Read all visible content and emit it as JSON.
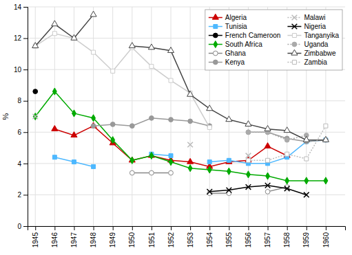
{
  "chart_data": {
    "type": "line",
    "y_label": "%",
    "x": [
      1945,
      1946,
      1947,
      1948,
      1949,
      1950,
      1951,
      1952,
      1953,
      1954,
      1955,
      1956,
      1957,
      1958,
      1959,
      1960
    ],
    "xlim": [
      1944.6,
      1961.0
    ],
    "xticks": [
      1945,
      1946,
      1947,
      1948,
      1949,
      1950,
      1951,
      1952,
      1953,
      1954,
      1955,
      1956,
      1957,
      1958,
      1959,
      1960
    ],
    "ylim": [
      0,
      14
    ],
    "yticks": [
      0,
      2,
      4,
      6,
      8,
      10,
      12,
      14
    ],
    "grid": true,
    "legend": "upper right",
    "series": [
      {
        "name": "Algeria",
        "color": "#cc0000",
        "marker": "triangle",
        "line_style": "solid",
        "values": [
          null,
          6.2,
          5.8,
          6.4,
          5.3,
          4.2,
          4.5,
          4.2,
          4.1,
          3.8,
          4.1,
          4.2,
          5.1,
          4.5,
          null,
          null
        ]
      },
      {
        "name": "Tunisia",
        "color": "#4db8ff",
        "marker": "square",
        "line_style": "solid",
        "values": [
          null,
          4.4,
          4.1,
          3.8,
          null,
          null,
          4.6,
          4.5,
          null,
          4.1,
          4.2,
          4.0,
          4.0,
          4.4,
          5.4,
          5.5
        ]
      },
      {
        "name": "French Cameroon",
        "color": "#000000",
        "marker": "circle",
        "line_style": "solid",
        "values": [
          8.6,
          null,
          null,
          null,
          null,
          null,
          null,
          null,
          null,
          null,
          null,
          null,
          null,
          null,
          null,
          null
        ]
      },
      {
        "name": "South Africa",
        "color": "#00aa00",
        "marker": "diamond",
        "line_style": "solid",
        "values": [
          7.0,
          8.6,
          7.2,
          6.9,
          5.5,
          4.2,
          4.5,
          4.1,
          3.7,
          3.6,
          3.5,
          3.3,
          3.2,
          2.9,
          2.9,
          2.9
        ]
      },
      {
        "name": "Ghana",
        "color": "#888888",
        "marker": "circle-open",
        "line_style": "solid",
        "values": [
          null,
          null,
          null,
          null,
          null,
          3.4,
          3.4,
          3.4,
          null,
          2.1,
          2.1,
          null,
          2.2,
          2.5,
          null,
          null
        ]
      },
      {
        "name": "Kenya",
        "color": "#999999",
        "marker": "circle",
        "line_style": "solid",
        "values": [
          null,
          null,
          null,
          6.4,
          6.5,
          6.4,
          6.9,
          6.8,
          6.7,
          6.4,
          null,
          6.0,
          6.0,
          5.6,
          5.4,
          5.5
        ]
      },
      {
        "name": "Malawi",
        "color": "#bbbbbb",
        "marker": "x",
        "line_style": "dotted",
        "values": [
          7.0,
          null,
          null,
          null,
          null,
          null,
          null,
          null,
          5.2,
          null,
          null,
          4.5,
          null,
          null,
          null,
          null
        ]
      },
      {
        "name": "Nigeria",
        "color": "#000000",
        "marker": "x",
        "line_style": "solid",
        "values": [
          null,
          null,
          null,
          null,
          null,
          null,
          null,
          null,
          null,
          2.2,
          2.3,
          2.5,
          2.6,
          2.4,
          2.0,
          null
        ]
      },
      {
        "name": "Tanganyika",
        "color": "#cccccc",
        "marker": "square-open",
        "line_style": "solid",
        "values": [
          11.5,
          12.3,
          12.0,
          11.1,
          9.9,
          11.4,
          10.2,
          9.3,
          8.5,
          6.3,
          null,
          null,
          null,
          null,
          null,
          null
        ]
      },
      {
        "name": "Uganda",
        "color": "#aaaaaa",
        "marker": "circle",
        "line_style": "dotted",
        "values": [
          null,
          null,
          null,
          null,
          null,
          null,
          null,
          null,
          null,
          null,
          null,
          6.0,
          6.0,
          5.5,
          5.8,
          null
        ]
      },
      {
        "name": "Zimbabwe",
        "color": "#444444",
        "marker": "triangle-open",
        "line_style": "solid",
        "values": [
          11.5,
          12.9,
          12.0,
          13.5,
          null,
          11.5,
          11.4,
          11.2,
          8.4,
          7.5,
          6.8,
          6.5,
          6.2,
          6.1,
          5.5,
          5.5
        ]
      },
      {
        "name": "Zambia",
        "color": "#bbbbbb",
        "marker": "square-open",
        "line_style": "dotted",
        "values": [
          null,
          null,
          null,
          null,
          null,
          null,
          null,
          null,
          null,
          null,
          null,
          4.2,
          4.2,
          4.6,
          4.3,
          6.4
        ]
      }
    ]
  }
}
